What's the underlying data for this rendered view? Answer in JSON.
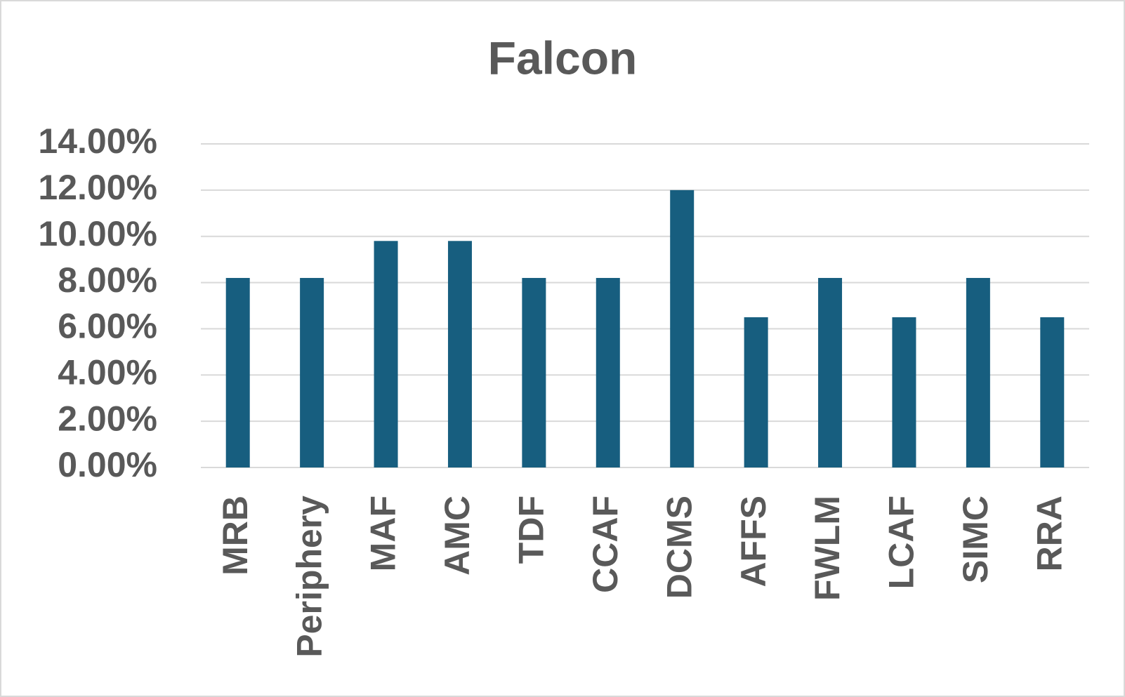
{
  "chart_data": {
    "type": "bar",
    "title": "Falcon",
    "categories": [
      "MRB",
      "Periphery",
      "MAF",
      "AMC",
      "TDF",
      "CCAF",
      "DCMS",
      "AFFS",
      "FWLM",
      "LCAF",
      "SIMC",
      "RRA"
    ],
    "values": [
      8.2,
      8.2,
      9.8,
      9.8,
      8.2,
      8.2,
      12.0,
      6.5,
      8.2,
      6.5,
      8.2,
      6.5
    ],
    "color": "#175e7f",
    "ylim": [
      0,
      14
    ],
    "yticks": [
      {
        "value": 0,
        "label": "0.00%"
      },
      {
        "value": 2,
        "label": "2.00%"
      },
      {
        "value": 4,
        "label": "4.00%"
      },
      {
        "value": 6,
        "label": "6.00%"
      },
      {
        "value": 8,
        "label": "8.00%"
      },
      {
        "value": 10,
        "label": "10.00%"
      },
      {
        "value": 12,
        "label": "12.00%"
      },
      {
        "value": 14,
        "label": "14.00%"
      }
    ],
    "grid": true
  }
}
